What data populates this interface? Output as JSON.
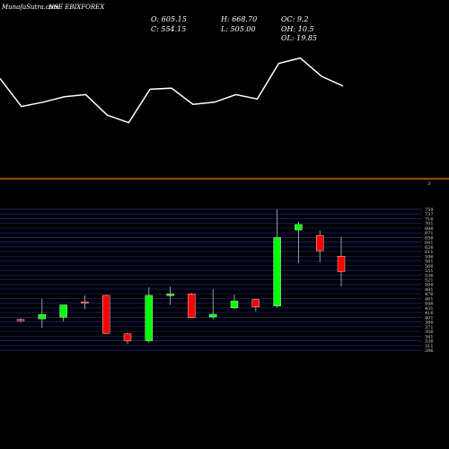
{
  "header": {
    "site": "MunafaSutra.com",
    "title": "NSE EBIXFOREX",
    "open": "O: 605.15",
    "high": "H: 668.70",
    "oc": "OC: 9.2",
    "close": "C: 554.15",
    "low": "L: 505.00",
    "oh": "OH: 10.5",
    "ol": "OL: 19.85"
  },
  "divider_label": "3",
  "colors": {
    "background": "#000000",
    "up": "#00ff00",
    "down": "#ff0000",
    "divider": "#cc6600",
    "grid": "#1c2a88",
    "line": "#ffffff"
  },
  "chart_data": [
    {
      "type": "line",
      "values": [
        73,
        47,
        51,
        56,
        58,
        39,
        32,
        63,
        64,
        49,
        51,
        58,
        54,
        87,
        92,
        75,
        66
      ]
    },
    {
      "type": "candlestick",
      "ytick_labels": [
        "759",
        "737",
        "716",
        "701",
        "686",
        "671",
        "656",
        "641",
        "626",
        "611",
        "596",
        "581",
        "566",
        "551",
        "536",
        "521",
        "506",
        "491",
        "476",
        "461",
        "446",
        "431",
        "416",
        "401",
        "386",
        "371",
        "356",
        "341",
        "326",
        "311",
        "296"
      ],
      "ylim": [
        296,
        759
      ],
      "candles": [
        {
          "o": 397,
          "h": 401,
          "l": 388,
          "c": 395
        },
        {
          "o": 399,
          "h": 465,
          "l": 369,
          "c": 413
        },
        {
          "o": 404,
          "h": 443,
          "l": 391,
          "c": 445
        },
        {
          "o": 455,
          "h": 476,
          "l": 431,
          "c": 453
        },
        {
          "o": 476,
          "h": 478,
          "l": 350,
          "c": 351
        },
        {
          "o": 350,
          "h": 353,
          "l": 316,
          "c": 327
        },
        {
          "o": 327,
          "h": 503,
          "l": 321,
          "c": 476
        },
        {
          "o": 475,
          "h": 506,
          "l": 445,
          "c": 481
        },
        {
          "o": 481,
          "h": 484,
          "l": 401,
          "c": 403
        },
        {
          "o": 405,
          "h": 496,
          "l": 398,
          "c": 414
        },
        {
          "o": 435,
          "h": 478,
          "l": 431,
          "c": 458
        },
        {
          "o": 463,
          "h": 465,
          "l": 423,
          "c": 438
        },
        {
          "o": 441,
          "h": 759,
          "l": 436,
          "c": 666
        },
        {
          "o": 691,
          "h": 718,
          "l": 582,
          "c": 709
        },
        {
          "o": 673,
          "h": 690,
          "l": 585,
          "c": 623
        },
        {
          "o": 605,
          "h": 669,
          "l": 505,
          "c": 554
        }
      ]
    }
  ]
}
